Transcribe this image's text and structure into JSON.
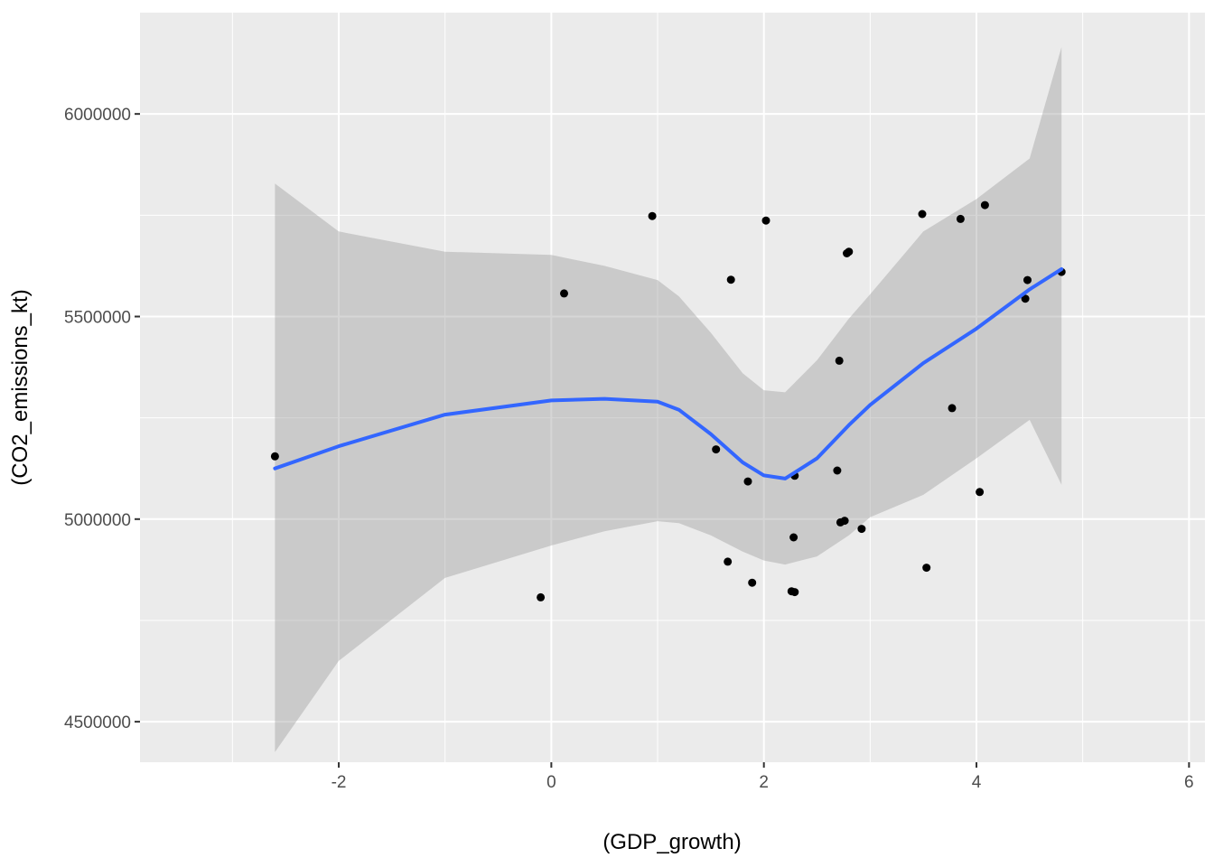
{
  "chart_data": {
    "type": "scatter",
    "xlabel": "(GDP_growth)",
    "ylabel": "(CO2_emissions_kt)",
    "xlim": [
      -3.87,
      6.15
    ],
    "ylim": [
      4400000,
      6250000
    ],
    "x_ticks": [
      -2,
      0,
      2,
      4,
      6
    ],
    "x_tick_labels": [
      "-2",
      "0",
      "2",
      "4",
      "6"
    ],
    "x_minor_ticks": [
      -3,
      -1,
      1,
      3,
      5
    ],
    "y_ticks": [
      4500000,
      5000000,
      5500000,
      6000000
    ],
    "y_tick_labels": [
      "4500000",
      "5000000",
      "5500000",
      "6000000"
    ],
    "y_minor_ticks": [
      4750000,
      5250000,
      5750000
    ],
    "grid": true,
    "background_color": "#ebebeb",
    "points": {
      "x": [
        -2.6,
        -0.1,
        0.12,
        0.95,
        1.55,
        1.66,
        1.69,
        1.85,
        1.89,
        2.02,
        2.26,
        2.29,
        2.28,
        2.29,
        2.69,
        2.71,
        2.72,
        2.76,
        2.78,
        2.8,
        2.92,
        3.49,
        3.53,
        3.77,
        3.85,
        4.03,
        4.08,
        4.46,
        4.48,
        4.8
      ],
      "y": [
        5155000,
        4807000,
        5557000,
        5748000,
        5172000,
        4895000,
        5591000,
        5093000,
        4843000,
        5737000,
        4822000,
        4820000,
        4955000,
        5107000,
        5120000,
        5391000,
        4992000,
        4996000,
        5656000,
        5660000,
        4976000,
        5753000,
        4880000,
        5274000,
        5741000,
        5067000,
        5775000,
        5544000,
        5590000,
        5610000
      ],
      "color": "#000000"
    },
    "smooth": {
      "method": "loess",
      "color": "#3366ff",
      "ribbon_color": "#999999",
      "x": [
        -2.6,
        -2.0,
        -1.0,
        0.0,
        0.5,
        1.0,
        1.2,
        1.5,
        1.8,
        2.0,
        2.2,
        2.5,
        2.8,
        3.0,
        3.5,
        4.0,
        4.5,
        4.8
      ],
      "fit": [
        5125000,
        5180000,
        5258000,
        5293000,
        5297000,
        5290000,
        5270000,
        5210000,
        5140000,
        5108000,
        5100000,
        5150000,
        5232000,
        5282000,
        5385000,
        5470000,
        5567000,
        5617000
      ],
      "lower": [
        4425000,
        4650000,
        4855000,
        4935000,
        4970000,
        4995000,
        4990000,
        4960000,
        4920000,
        4898000,
        4888000,
        4908000,
        4960000,
        5005000,
        5060000,
        5150000,
        5245000,
        5085000
      ],
      "upper": [
        5828000,
        5710000,
        5660000,
        5652000,
        5625000,
        5590000,
        5550000,
        5460000,
        5360000,
        5318000,
        5313000,
        5392000,
        5495000,
        5555000,
        5710000,
        5790000,
        5890000,
        6165000
      ]
    }
  }
}
